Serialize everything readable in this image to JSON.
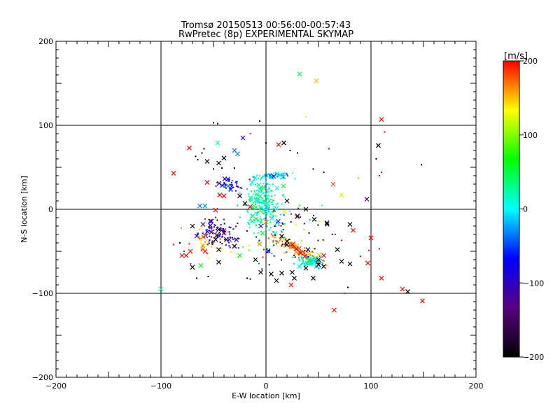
{
  "chart_data": {
    "type": "scatter",
    "title": "Tromsø 20150513 00:56:00-00:57:43",
    "subtitle": "RwPretec (8p) EXPERIMENTAL SKYMAP",
    "xlabel": "E-W location [km]",
    "ylabel": "N-S location [km]",
    "xlim": [
      -200,
      200
    ],
    "ylim": [
      -200,
      200
    ],
    "x_ticks": [
      "-200",
      "-100",
      "0",
      "100",
      "200"
    ],
    "y_ticks": [
      "-200",
      "-100",
      "0",
      "100",
      "200"
    ],
    "grid_lines": [
      -100,
      0,
      100
    ],
    "colorbar": {
      "label": "[m/s]",
      "range": [
        -200,
        200
      ],
      "ticks": [
        "-200",
        "-100",
        "0",
        "100",
        "200"
      ],
      "colormap": [
        "#000000",
        "#5a0080",
        "#0000ff",
        "#00ffff",
        "#00ff00",
        "#ffff00",
        "#ff0000"
      ]
    },
    "markers": {
      "cross": "×",
      "dot": "·"
    },
    "points": [
      {
        "x": 32,
        "y": 161,
        "v": 40,
        "m": "x"
      },
      {
        "x": 48,
        "y": 153,
        "v": 150,
        "m": "x"
      },
      {
        "x": 110,
        "y": 107,
        "v": 200,
        "m": "x"
      },
      {
        "x": -88,
        "y": 43,
        "v": 200,
        "m": "x"
      },
      {
        "x": -73,
        "y": 73,
        "v": 200,
        "m": "x"
      },
      {
        "x": -46,
        "y": 79,
        "v": 20,
        "m": "x"
      },
      {
        "x": -22,
        "y": 85,
        "v": -100,
        "m": "x"
      },
      {
        "x": 12,
        "y": 77,
        "v": 200,
        "m": "x"
      },
      {
        "x": 17,
        "y": 79,
        "v": -200,
        "m": "x"
      },
      {
        "x": -30,
        "y": 70,
        "v": -40,
        "m": "x"
      },
      {
        "x": -27,
        "y": 66,
        "v": -30,
        "m": "x"
      },
      {
        "x": -40,
        "y": 61,
        "v": -200,
        "m": "x"
      },
      {
        "x": -56,
        "y": 57,
        "v": -200,
        "m": "x"
      },
      {
        "x": -45,
        "y": 55,
        "v": -200,
        "m": "x"
      },
      {
        "x": 107,
        "y": 76,
        "v": -200,
        "m": "x"
      },
      {
        "x": -56,
        "y": 32,
        "v": 200,
        "m": "x"
      },
      {
        "x": -44,
        "y": 17,
        "v": 200,
        "m": "x"
      },
      {
        "x": -40,
        "y": 16,
        "v": 200,
        "m": "x"
      },
      {
        "x": -36,
        "y": 28,
        "v": -30,
        "m": "x"
      },
      {
        "x": -25,
        "y": 16,
        "v": -200,
        "m": "x"
      },
      {
        "x": -15,
        "y": 3,
        "v": 200,
        "m": "x"
      },
      {
        "x": -48,
        "y": -1,
        "v": 200,
        "m": "x"
      },
      {
        "x": -63,
        "y": 4,
        "v": -30,
        "m": "x"
      },
      {
        "x": -58,
        "y": 4,
        "v": -30,
        "m": "x"
      },
      {
        "x": -20,
        "y": 7,
        "v": -200,
        "m": "x"
      },
      {
        "x": 20,
        "y": 10,
        "v": -200,
        "m": "x"
      },
      {
        "x": 38,
        "y": 0,
        "v": -200,
        "m": "x"
      },
      {
        "x": 64,
        "y": 30,
        "v": 180,
        "m": "x"
      },
      {
        "x": 72,
        "y": 17,
        "v": 120,
        "m": "x"
      },
      {
        "x": 96,
        "y": 12,
        "v": -130,
        "m": "x"
      },
      {
        "x": -70,
        "y": -20,
        "v": -200,
        "m": "x"
      },
      {
        "x": -60,
        "y": -18,
        "v": -130,
        "m": "x"
      },
      {
        "x": -53,
        "y": -14,
        "v": -130,
        "m": "x"
      },
      {
        "x": -45,
        "y": -24,
        "v": -200,
        "m": "x"
      },
      {
        "x": -40,
        "y": -28,
        "v": -130,
        "m": "x"
      },
      {
        "x": -48,
        "y": -36,
        "v": -200,
        "m": "x"
      },
      {
        "x": -35,
        "y": -36,
        "v": -130,
        "m": "x"
      },
      {
        "x": -30,
        "y": -44,
        "v": -200,
        "m": "x"
      },
      {
        "x": -45,
        "y": -48,
        "v": -200,
        "m": "x"
      },
      {
        "x": -58,
        "y": -50,
        "v": 200,
        "m": "x"
      },
      {
        "x": -72,
        "y": -50,
        "v": 200,
        "m": "x"
      },
      {
        "x": -76,
        "y": -55,
        "v": 200,
        "m": "x"
      },
      {
        "x": -45,
        "y": -63,
        "v": -200,
        "m": "x"
      },
      {
        "x": -62,
        "y": -67,
        "v": 60,
        "m": "x"
      },
      {
        "x": -25,
        "y": -55,
        "v": 60,
        "m": "x"
      },
      {
        "x": -10,
        "y": -60,
        "v": -200,
        "m": "x"
      },
      {
        "x": -5,
        "y": -20,
        "v": -130,
        "m": "x"
      },
      {
        "x": 30,
        "y": -8,
        "v": -200,
        "m": "x"
      },
      {
        "x": 46,
        "y": -12,
        "v": -200,
        "m": "x"
      },
      {
        "x": 58,
        "y": -16,
        "v": -200,
        "m": "x"
      },
      {
        "x": 80,
        "y": -18,
        "v": -200,
        "m": "x"
      },
      {
        "x": 15,
        "y": -32,
        "v": -200,
        "m": "x"
      },
      {
        "x": 20,
        "y": -38,
        "v": -200,
        "m": "x"
      },
      {
        "x": 25,
        "y": -42,
        "v": 200,
        "m": "x"
      },
      {
        "x": 29,
        "y": -47,
        "v": 200,
        "m": "x"
      },
      {
        "x": 33,
        "y": -52,
        "v": 200,
        "m": "x"
      },
      {
        "x": 37,
        "y": -56,
        "v": 200,
        "m": "x"
      },
      {
        "x": 20,
        "y": -42,
        "v": -200,
        "m": "x"
      },
      {
        "x": 40,
        "y": -48,
        "v": -200,
        "m": "x"
      },
      {
        "x": 50,
        "y": -60,
        "v": -200,
        "m": "x"
      },
      {
        "x": 50,
        "y": -66,
        "v": -200,
        "m": "x"
      },
      {
        "x": 55,
        "y": -55,
        "v": 200,
        "m": "x"
      },
      {
        "x": 42,
        "y": -60,
        "v": 60,
        "m": "x"
      },
      {
        "x": 38,
        "y": -70,
        "v": -200,
        "m": "x"
      },
      {
        "x": 25,
        "y": -75,
        "v": -200,
        "m": "x"
      },
      {
        "x": 15,
        "y": -76,
        "v": -200,
        "m": "x"
      },
      {
        "x": 10,
        "y": -85,
        "v": -200,
        "m": "x"
      },
      {
        "x": 27,
        "y": -82,
        "v": -200,
        "m": "x"
      },
      {
        "x": 5,
        "y": -77,
        "v": -200,
        "m": "x"
      },
      {
        "x": -5,
        "y": -75,
        "v": -200,
        "m": "x"
      },
      {
        "x": 24,
        "y": -90,
        "v": 200,
        "m": "x"
      },
      {
        "x": 68,
        "y": -48,
        "v": -200,
        "m": "x"
      },
      {
        "x": 72,
        "y": -62,
        "v": -200,
        "m": "x"
      },
      {
        "x": 80,
        "y": -65,
        "v": -200,
        "m": "x"
      },
      {
        "x": 100,
        "y": -34,
        "v": 200,
        "m": "x"
      },
      {
        "x": 97,
        "y": -64,
        "v": 200,
        "m": "x"
      },
      {
        "x": 110,
        "y": -82,
        "v": 200,
        "m": "x"
      },
      {
        "x": 130,
        "y": -95,
        "v": 200,
        "m": "x"
      },
      {
        "x": 135,
        "y": -98,
        "v": -200,
        "m": "x"
      },
      {
        "x": 149,
        "y": -109,
        "v": 200,
        "m": "x"
      },
      {
        "x": 65,
        "y": -120,
        "v": 200,
        "m": "x"
      },
      {
        "x": -100,
        "y": -95,
        "v": 20,
        "m": "x"
      },
      {
        "x": 83,
        "y": -25,
        "v": 200,
        "m": "x"
      },
      {
        "x": -80,
        "y": -55,
        "v": 200,
        "m": "x"
      },
      {
        "x": -70,
        "y": -69,
        "v": -200,
        "m": "x"
      },
      {
        "x": 55,
        "y": -68,
        "v": -200,
        "m": "x"
      },
      {
        "x": 45,
        "y": -82,
        "v": -200,
        "m": "x"
      },
      {
        "x": -50,
        "y": 103,
        "v": -200,
        "m": "d"
      },
      {
        "x": -46,
        "y": 102,
        "v": -200,
        "m": "d"
      },
      {
        "x": -6,
        "y": 105,
        "v": -200,
        "m": "d"
      },
      {
        "x": 38,
        "y": 110,
        "v": 120,
        "m": "d"
      },
      {
        "x": 113,
        "y": 92,
        "v": 200,
        "m": "d"
      },
      {
        "x": -15,
        "y": 90,
        "v": 200,
        "m": "d"
      },
      {
        "x": -59,
        "y": 72,
        "v": -200,
        "m": "d"
      },
      {
        "x": -61,
        "y": 67,
        "v": -200,
        "m": "d"
      },
      {
        "x": -67,
        "y": 63,
        "v": -200,
        "m": "d"
      },
      {
        "x": -65,
        "y": 59,
        "v": -200,
        "m": "d"
      },
      {
        "x": 0,
        "y": 79,
        "v": -200,
        "m": "d"
      },
      {
        "x": 23,
        "y": 70,
        "v": -200,
        "m": "d"
      },
      {
        "x": 30,
        "y": 67,
        "v": -200,
        "m": "d"
      },
      {
        "x": 60,
        "y": 72,
        "v": 200,
        "m": "d"
      },
      {
        "x": 105,
        "y": 60,
        "v": -200,
        "m": "d"
      },
      {
        "x": 148,
        "y": 53,
        "v": -200,
        "m": "d"
      },
      {
        "x": 110,
        "y": 44,
        "v": 200,
        "m": "d"
      },
      {
        "x": 108,
        "y": 40,
        "v": 200,
        "m": "d"
      },
      {
        "x": -50,
        "y": 48,
        "v": -200,
        "m": "d"
      },
      {
        "x": -42,
        "y": 49,
        "v": -200,
        "m": "d"
      },
      {
        "x": -30,
        "y": 49,
        "v": -200,
        "m": "d"
      },
      {
        "x": 45,
        "y": 48,
        "v": -200,
        "m": "d"
      },
      {
        "x": 55,
        "y": 44,
        "v": -200,
        "m": "d"
      },
      {
        "x": 88,
        "y": 37,
        "v": 160,
        "m": "d"
      },
      {
        "x": -55,
        "y": -80,
        "v": -200,
        "m": "d"
      },
      {
        "x": -66,
        "y": -82,
        "v": -200,
        "m": "d"
      },
      {
        "x": -82,
        "y": -40,
        "v": -200,
        "m": "d"
      },
      {
        "x": -78,
        "y": -50,
        "v": 200,
        "m": "d"
      },
      {
        "x": -88,
        "y": -42,
        "v": 200,
        "m": "d"
      },
      {
        "x": -18,
        "y": -82,
        "v": -200,
        "m": "d"
      },
      {
        "x": -15,
        "y": -83,
        "v": -200,
        "m": "d"
      },
      {
        "x": 75,
        "y": -100,
        "v": 200,
        "m": "d"
      },
      {
        "x": 78,
        "y": -93,
        "v": -200,
        "m": "d"
      },
      {
        "x": 90,
        "y": -56,
        "v": 200,
        "m": "d"
      },
      {
        "x": 98,
        "y": -49,
        "v": 200,
        "m": "d"
      },
      {
        "x": 108,
        "y": -47,
        "v": 200,
        "m": "d"
      },
      {
        "x": 72,
        "y": -37,
        "v": 200,
        "m": "d"
      },
      {
        "x": 66,
        "y": -30,
        "v": 200,
        "m": "d"
      },
      {
        "x": -3,
        "y": -57,
        "v": 200,
        "m": "d"
      },
      {
        "x": -2,
        "y": -48,
        "v": 200,
        "m": "d"
      }
    ],
    "clusters": [
      {
        "cx": -3,
        "cy": 5,
        "sx": 12,
        "sy": 22,
        "n": 220,
        "v": [
          -20,
          60
        ],
        "ang": 0
      },
      {
        "cx": 5,
        "cy": 40,
        "sx": 12,
        "sy": 3,
        "n": 70,
        "v": [
          -60,
          20
        ],
        "ang": 0
      },
      {
        "cx": -35,
        "cy": 30,
        "sx": 12,
        "sy": 5,
        "n": 40,
        "v": [
          -110,
          -40
        ],
        "ang": 0
      },
      {
        "cx": -45,
        "cy": -28,
        "sx": 12,
        "sy": 10,
        "n": 90,
        "v": [
          -200,
          -60
        ],
        "ang": 0
      },
      {
        "cx": 30,
        "cy": -48,
        "sx": 22,
        "sy": 4,
        "n": 90,
        "v": [
          140,
          200
        ],
        "ang": -0.5
      },
      {
        "cx": 42,
        "cy": -62,
        "sx": 8,
        "sy": 5,
        "n": 110,
        "v": [
          -20,
          40
        ],
        "ang": 0
      },
      {
        "cx": 20,
        "cy": -30,
        "sx": 30,
        "sy": 25,
        "n": 90,
        "v": [
          -200,
          200
        ],
        "ang": 0
      },
      {
        "cx": -55,
        "cy": -40,
        "sx": 15,
        "sy": 15,
        "n": 40,
        "v": [
          120,
          200
        ],
        "ang": 0
      }
    ]
  }
}
